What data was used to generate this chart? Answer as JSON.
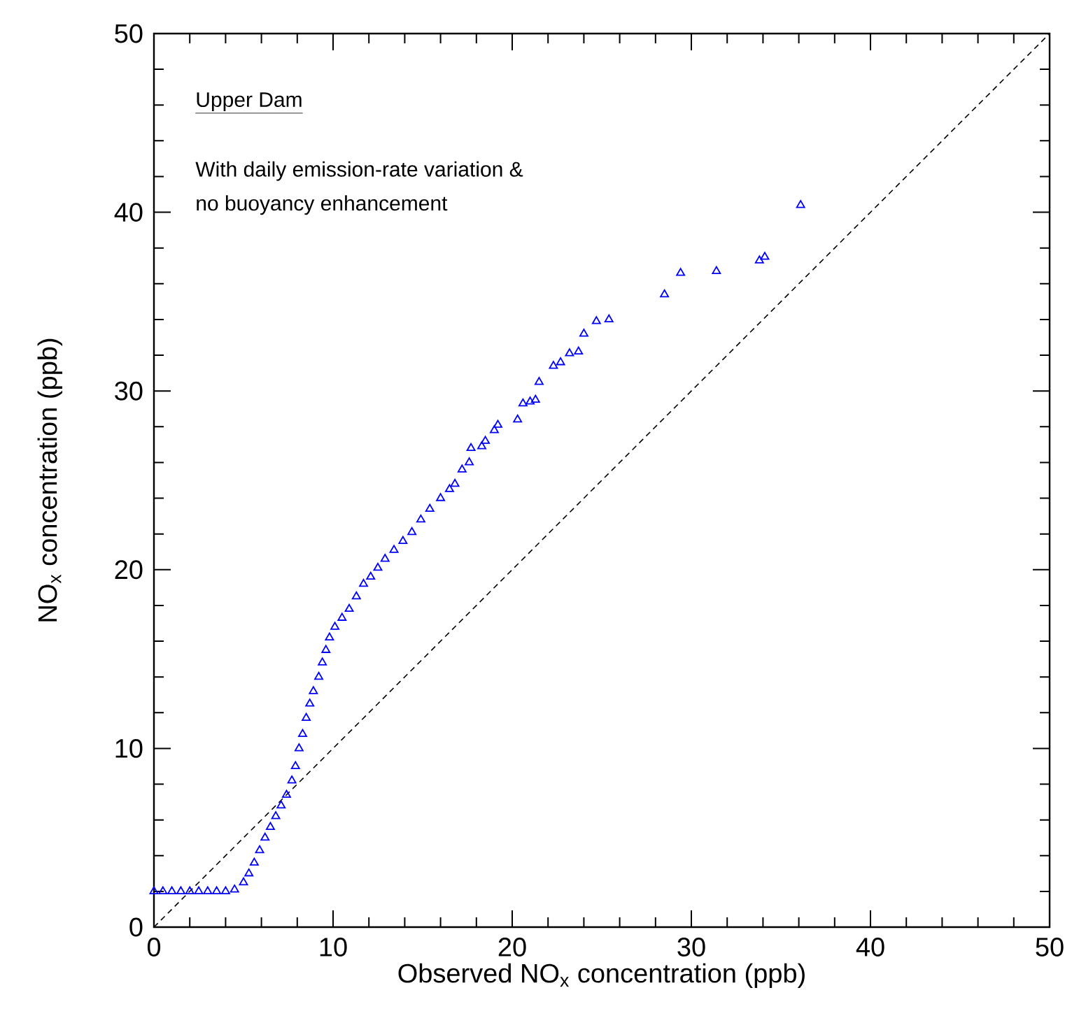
{
  "chart_data": {
    "type": "scatter",
    "xlabel": "Observed NO$_{x}$ concentration (ppb)",
    "ylabel": "NO$_{x}$ concentration (ppb)",
    "annotations": [
      "Upper Dam",
      "With daily emission-rate variation &",
      "no buoyancy enhancement"
    ],
    "xlim": [
      0,
      50
    ],
    "ylim": [
      0,
      50
    ],
    "xticks": [
      0,
      {
        "value": 2,
        "label": null
      },
      {
        "value": 4,
        "label": null
      },
      {
        "value": 6,
        "label": null
      },
      {
        "value": 8,
        "label": null
      },
      10,
      {
        "value": 12,
        "label": null
      },
      {
        "value": 14,
        "label": null
      },
      {
        "value": 16,
        "label": null
      },
      {
        "value": 18,
        "label": null
      },
      20,
      {
        "value": 22,
        "label": null
      },
      {
        "value": 24,
        "label": null
      },
      {
        "value": 26,
        "label": null
      },
      {
        "value": 28,
        "label": null
      },
      30,
      {
        "value": 32,
        "label": null
      },
      {
        "value": 34,
        "label": null
      },
      {
        "value": 36,
        "label": null
      },
      {
        "value": 38,
        "label": null
      },
      40,
      {
        "value": 42,
        "label": null
      },
      {
        "value": 44,
        "label": null
      },
      {
        "value": 46,
        "label": null
      },
      {
        "value": 48,
        "label": null
      },
      50
    ],
    "yticks": [
      0,
      {
        "value": 2,
        "label": null
      },
      {
        "value": 4,
        "label": null
      },
      {
        "value": 6,
        "label": null
      },
      {
        "value": 8,
        "label": null
      },
      10,
      {
        "value": 12,
        "label": null
      },
      {
        "value": 14,
        "label": null
      },
      {
        "value": 16,
        "label": null
      },
      {
        "value": 18,
        "label": null
      },
      20,
      {
        "value": 22,
        "label": null
      },
      {
        "value": 24,
        "label": null
      },
      {
        "value": 26,
        "label": null
      },
      {
        "value": 28,
        "label": null
      },
      30,
      {
        "value": 32,
        "label": null
      },
      {
        "value": 34,
        "label": null
      },
      {
        "value": 36,
        "label": null
      },
      {
        "value": 38,
        "label": null
      },
      40,
      {
        "value": 42,
        "label": null
      },
      {
        "value": 44,
        "label": null
      },
      {
        "value": 46,
        "label": null
      },
      {
        "value": 48,
        "label": null
      },
      50
    ],
    "series": [
      {
        "color": "#0000ff",
        "marker": "triangle",
        "x": [
          0,
          0.5,
          1,
          1.5,
          2,
          2.5,
          3,
          3.5,
          4,
          4.5,
          5,
          5.3,
          5.6,
          5.9,
          6.2,
          6.5,
          6.8,
          7.1,
          7.4,
          7.7,
          7.9,
          8.1,
          8.3,
          8.5,
          8.7,
          8.9,
          9.2,
          9.4,
          9.6,
          9.8,
          10.1,
          10.5,
          10.9,
          11.3,
          11.7,
          12.1,
          12.5,
          12.9,
          13.4,
          13.9,
          14.4,
          14.9,
          15.4,
          16,
          16.5,
          16.8,
          17.2,
          17.6,
          17.7,
          18.3,
          18.5,
          19,
          19.2,
          20.3,
          20.6,
          21,
          21.3,
          21.5,
          22.3,
          22.7,
          23.2,
          23.7,
          24,
          24.7,
          25.4,
          28.5,
          29.4,
          31.4,
          33.8,
          34.1,
          36.1
        ],
        "values": [
          2,
          2,
          2,
          2,
          2,
          2,
          2,
          2,
          2,
          2.1,
          2.5,
          3,
          3.6,
          4.3,
          5,
          5.6,
          6.2,
          6.8,
          7.4,
          8.2,
          9,
          10,
          10.8,
          11.7,
          12.5,
          13.2,
          14,
          14.8,
          15.5,
          16.2,
          16.8,
          17.3,
          17.8,
          18.5,
          19.2,
          19.6,
          20.1,
          20.6,
          21.1,
          21.6,
          22.1,
          22.8,
          23.4,
          24,
          24.5,
          24.8,
          25.6,
          26,
          26.8,
          26.9,
          27.2,
          27.8,
          28.1,
          28.4,
          29.3,
          29.4,
          29.5,
          30.5,
          31.4,
          31.6,
          32.1,
          32.2,
          33.2,
          33.9,
          34,
          35.4,
          36.6,
          36.7,
          37.3,
          37.5,
          40.4
        ]
      },
      {
        "type": "line",
        "color": "#000000",
        "line_style": "dashed",
        "marker": "none",
        "x": [
          0,
          50
        ],
        "values": [
          0,
          50
        ]
      }
    ]
  }
}
